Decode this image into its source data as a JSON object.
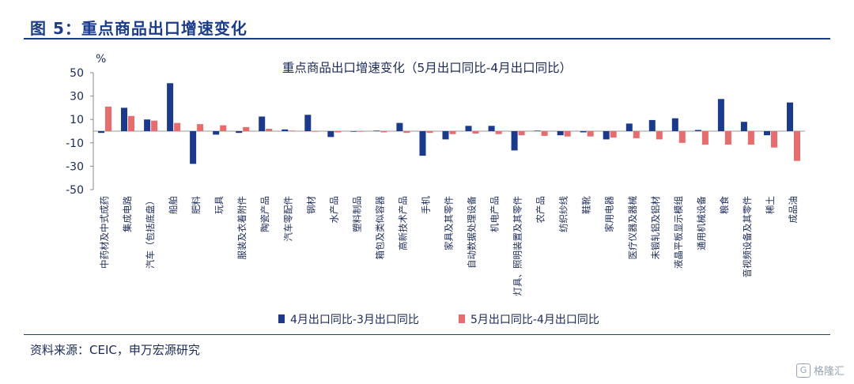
{
  "figure": {
    "title": "图 5：重点商品出口增速变化",
    "source": "资料来源：CEIC，申万宏源研究",
    "watermark": "格隆汇"
  },
  "chart_data": {
    "type": "bar",
    "title": "重点商品出口增速变化（5月出口同比-4月出口同比）",
    "ylabel": "%",
    "xlabel": "",
    "ylim": [
      -50,
      50
    ],
    "yticks": [
      50,
      30,
      10,
      -10,
      -30,
      -50
    ],
    "legend_position": "bottom",
    "categories": [
      "中药材及中式成药",
      "集成电路",
      "汽车（包括底盘）",
      "船舶",
      "肥料",
      "玩具",
      "服装及衣着附件",
      "陶瓷产品",
      "汽车零配件",
      "钢材",
      "水产品",
      "塑料制品",
      "箱包及类似容器",
      "高新技术产品",
      "手机",
      "家具及其零件",
      "自动数据处理设备",
      "机电产品",
      "灯具、照明装置及其零件",
      "农产品",
      "纺织纱线",
      "鞋靴",
      "家用电器",
      "医疗仪器及器械",
      "未锻轧铝及铝材",
      "液晶平板显示模组",
      "通用机械设备",
      "粮食",
      "音视频设备及其零件",
      "稀土",
      "成品油"
    ],
    "series": [
      {
        "name": "4月出口同比-3月出口同比",
        "color": "#1a3a8f",
        "values": [
          -1.5,
          20,
          10,
          41,
          -28,
          -3,
          -1.5,
          12.5,
          1.5,
          14,
          -5,
          -0.5,
          0.5,
          7,
          -21,
          -7,
          4.5,
          4.5,
          -16.5,
          0.5,
          -3.5,
          -1,
          -7,
          6.5,
          9.5,
          11,
          1,
          27.5,
          8,
          -3.5,
          24.5
        ]
      },
      {
        "name": "5月出口同比-4月出口同比",
        "color": "#ea6b6b",
        "values": [
          21,
          13,
          9,
          7,
          6,
          5,
          3.5,
          2,
          0.5,
          -0.5,
          -1,
          -0.5,
          -1,
          -1.5,
          -1.5,
          -2.5,
          -2,
          -2.5,
          -3.5,
          -4,
          -4.5,
          -4.5,
          -5.5,
          -6,
          -7,
          -10,
          -11.5,
          -11.5,
          -11.5,
          -14,
          -25.5
        ]
      }
    ]
  }
}
